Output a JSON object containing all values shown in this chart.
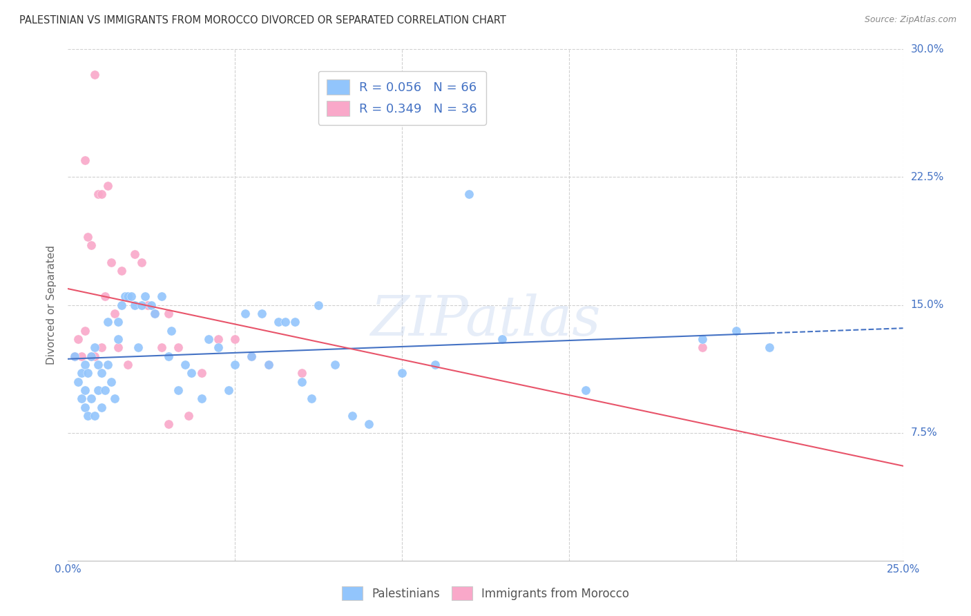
{
  "title": "PALESTINIAN VS IMMIGRANTS FROM MOROCCO DIVORCED OR SEPARATED CORRELATION CHART",
  "source": "Source: ZipAtlas.com",
  "ylabel": "Divorced or Separated",
  "xlim": [
    0.0,
    0.25
  ],
  "ylim": [
    0.0,
    0.3
  ],
  "xticks": [
    0.0,
    0.05,
    0.1,
    0.15,
    0.2,
    0.25
  ],
  "yticks": [
    0.0,
    0.075,
    0.15,
    0.225,
    0.3
  ],
  "ytick_labels": [
    "",
    "7.5%",
    "15.0%",
    "22.5%",
    "30.0%"
  ],
  "xtick_labels": [
    "0.0%",
    "",
    "",
    "",
    "",
    "25.0%"
  ],
  "blue_R": 0.056,
  "blue_N": 66,
  "pink_R": 0.349,
  "pink_N": 36,
  "legend_labels": [
    "Palestinians",
    "Immigrants from Morocco"
  ],
  "blue_color": "#92C5FC",
  "pink_color": "#F9A8C9",
  "blue_line_color": "#4472C4",
  "pink_line_color": "#E8546A",
  "axis_color": "#4472C4",
  "watermark": "ZIPatlas",
  "grid_color": "#D0D0D0",
  "blue_scatter_x": [
    0.002,
    0.003,
    0.004,
    0.004,
    0.005,
    0.005,
    0.005,
    0.006,
    0.006,
    0.007,
    0.007,
    0.008,
    0.008,
    0.009,
    0.009,
    0.01,
    0.01,
    0.011,
    0.012,
    0.012,
    0.013,
    0.014,
    0.015,
    0.015,
    0.016,
    0.017,
    0.018,
    0.019,
    0.02,
    0.021,
    0.022,
    0.023,
    0.025,
    0.026,
    0.028,
    0.03,
    0.031,
    0.033,
    0.035,
    0.037,
    0.04,
    0.042,
    0.045,
    0.048,
    0.05,
    0.053,
    0.055,
    0.058,
    0.06,
    0.063,
    0.065,
    0.068,
    0.07,
    0.073,
    0.075,
    0.08,
    0.085,
    0.09,
    0.1,
    0.11,
    0.12,
    0.13,
    0.155,
    0.19,
    0.2,
    0.21
  ],
  "blue_scatter_y": [
    0.12,
    0.105,
    0.095,
    0.11,
    0.09,
    0.1,
    0.115,
    0.085,
    0.11,
    0.095,
    0.12,
    0.125,
    0.085,
    0.1,
    0.115,
    0.09,
    0.11,
    0.1,
    0.115,
    0.14,
    0.105,
    0.095,
    0.14,
    0.13,
    0.15,
    0.155,
    0.155,
    0.155,
    0.15,
    0.125,
    0.15,
    0.155,
    0.15,
    0.145,
    0.155,
    0.12,
    0.135,
    0.1,
    0.115,
    0.11,
    0.095,
    0.13,
    0.125,
    0.1,
    0.115,
    0.145,
    0.12,
    0.145,
    0.115,
    0.14,
    0.14,
    0.14,
    0.105,
    0.095,
    0.15,
    0.115,
    0.085,
    0.08,
    0.11,
    0.115,
    0.215,
    0.13,
    0.1,
    0.13,
    0.135,
    0.125
  ],
  "pink_scatter_x": [
    0.002,
    0.003,
    0.004,
    0.005,
    0.005,
    0.006,
    0.007,
    0.007,
    0.008,
    0.008,
    0.009,
    0.01,
    0.01,
    0.011,
    0.012,
    0.013,
    0.014,
    0.015,
    0.016,
    0.018,
    0.02,
    0.022,
    0.024,
    0.026,
    0.028,
    0.03,
    0.033,
    0.036,
    0.04,
    0.045,
    0.05,
    0.055,
    0.06,
    0.07,
    0.19,
    0.03
  ],
  "pink_scatter_y": [
    0.12,
    0.13,
    0.12,
    0.235,
    0.135,
    0.19,
    0.185,
    0.12,
    0.285,
    0.12,
    0.215,
    0.215,
    0.125,
    0.155,
    0.22,
    0.175,
    0.145,
    0.125,
    0.17,
    0.115,
    0.18,
    0.175,
    0.15,
    0.145,
    0.125,
    0.145,
    0.125,
    0.085,
    0.11,
    0.13,
    0.13,
    0.12,
    0.115,
    0.11,
    0.125,
    0.08
  ]
}
